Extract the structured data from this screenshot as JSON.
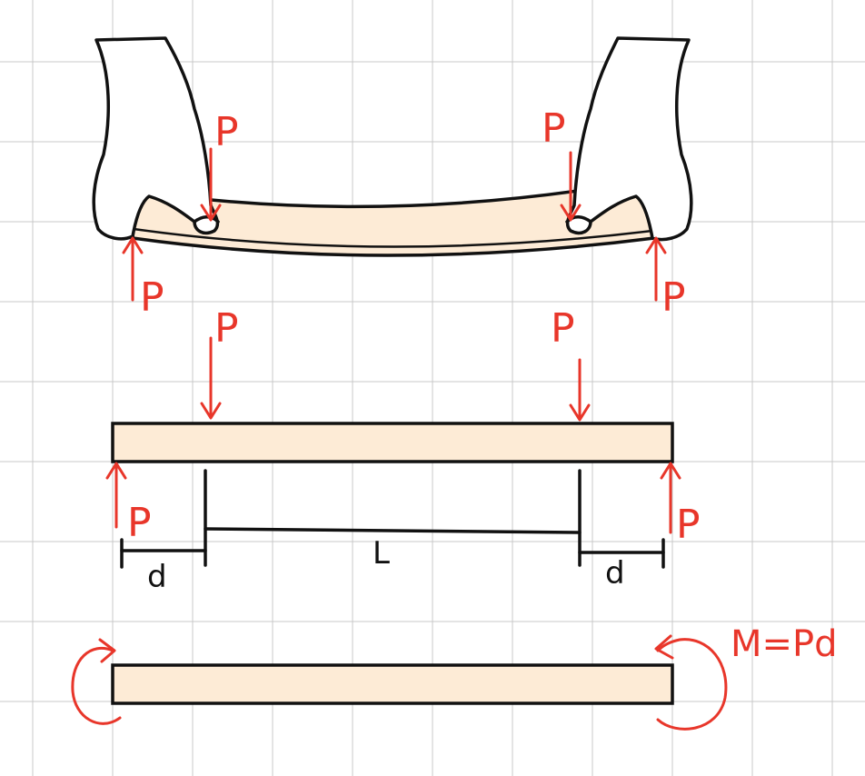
{
  "colors": {
    "force": "#e8362a",
    "ink": "#111111",
    "beam_fill": "#fdebd6",
    "grid": "#c8c8c8",
    "background": "#ffffff"
  },
  "panel_hands": {
    "labels": {
      "top_left": "P",
      "top_right": "P",
      "bottom_left": "P",
      "bottom_right": "P"
    }
  },
  "panel_four_point": {
    "labels": {
      "top_left": "P",
      "top_right": "P",
      "bottom_left": "P",
      "bottom_right": "P"
    },
    "dimensions": {
      "left_overhang": "d",
      "span": "L",
      "right_overhang": "d"
    }
  },
  "panel_moment": {
    "label": "M=Pd"
  }
}
